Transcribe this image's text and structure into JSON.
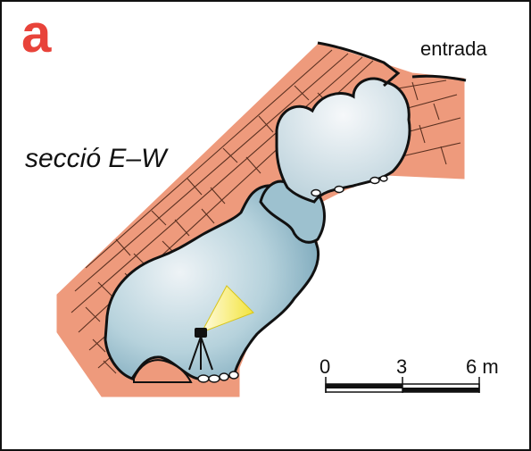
{
  "panel_label": "a",
  "entrance_label": "entrada",
  "section_label": "secció  E–W",
  "scale_bar": {
    "ticks": [
      "0",
      "3",
      "6 m"
    ]
  },
  "colors": {
    "rock": "#ee9a7c",
    "cave_interior": "#a8ccd8",
    "cave_highlight": "#e8eef2",
    "light_cone": "#f7ee55",
    "panel_letter": "#e8433a"
  }
}
